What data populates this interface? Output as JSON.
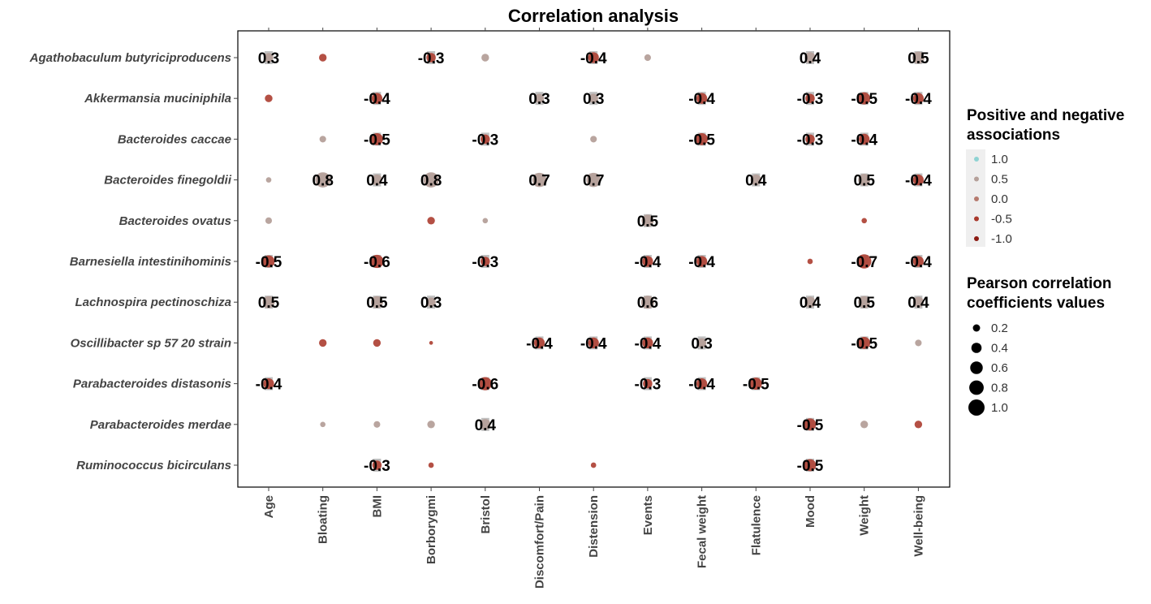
{
  "chart_data": {
    "type": "scatter",
    "title": "Correlation analysis",
    "rows": [
      "Agathobaculum butyriciproducens",
      "Akkermansia muciniphila",
      "Bacteroides caccae",
      "Bacteroides finegoldii",
      "Bacteroides ovatus",
      "Barnesiella intestinihominis",
      "Lachnospira pectinoschiza",
      "Oscillibacter sp 57 20 strain",
      "Parabacteroides distasonis",
      "Parabacteroides merdae",
      "Ruminococcus bicirculans"
    ],
    "columns": [
      "Age",
      "Bloating",
      "BMI",
      "Borborygmi",
      "Bristol",
      "Discomfort/Pain",
      "Distension",
      "Events",
      "Fecal weight",
      "Flatulence",
      "Mood",
      "Weight",
      "Well-being"
    ],
    "cells": [
      {
        "row": 0,
        "col": 0,
        "r": 0.3,
        "label": "0.3"
      },
      {
        "row": 0,
        "col": 1,
        "r": -0.2
      },
      {
        "row": 0,
        "col": 3,
        "r": -0.3,
        "label": "-0.3"
      },
      {
        "row": 0,
        "col": 4,
        "r": 0.2
      },
      {
        "row": 0,
        "col": 6,
        "r": -0.4,
        "label": "-0.4"
      },
      {
        "row": 0,
        "col": 7,
        "r": 0.15
      },
      {
        "row": 0,
        "col": 10,
        "r": 0.4,
        "label": "0.4"
      },
      {
        "row": 0,
        "col": 12,
        "r": 0.5,
        "label": "0.5"
      },
      {
        "row": 1,
        "col": 0,
        "r": -0.2
      },
      {
        "row": 1,
        "col": 2,
        "r": -0.4,
        "label": "-0.4"
      },
      {
        "row": 1,
        "col": 5,
        "r": 0.3,
        "label": "0.3"
      },
      {
        "row": 1,
        "col": 6,
        "r": 0.3,
        "label": "0.3"
      },
      {
        "row": 1,
        "col": 8,
        "r": -0.4,
        "label": "-0.4"
      },
      {
        "row": 1,
        "col": 10,
        "r": -0.3,
        "label": "-0.3"
      },
      {
        "row": 1,
        "col": 11,
        "r": -0.5,
        "label": "-0.5"
      },
      {
        "row": 1,
        "col": 12,
        "r": -0.4,
        "label": "-0.4"
      },
      {
        "row": 2,
        "col": 1,
        "r": 0.15
      },
      {
        "row": 2,
        "col": 2,
        "r": -0.5,
        "label": "-0.5"
      },
      {
        "row": 2,
        "col": 4,
        "r": -0.3,
        "label": "-0.3"
      },
      {
        "row": 2,
        "col": 6,
        "r": 0.15
      },
      {
        "row": 2,
        "col": 8,
        "r": -0.5,
        "label": "-0.5"
      },
      {
        "row": 2,
        "col": 10,
        "r": -0.3,
        "label": "-0.3"
      },
      {
        "row": 2,
        "col": 11,
        "r": -0.4,
        "label": "-0.4"
      },
      {
        "row": 3,
        "col": 0,
        "r": 0.1
      },
      {
        "row": 3,
        "col": 1,
        "r": 0.8,
        "label": "0.8"
      },
      {
        "row": 3,
        "col": 2,
        "r": 0.4,
        "label": "0.4"
      },
      {
        "row": 3,
        "col": 3,
        "r": 0.8,
        "label": "0.8"
      },
      {
        "row": 3,
        "col": 5,
        "r": 0.7,
        "label": "0.7"
      },
      {
        "row": 3,
        "col": 6,
        "r": 0.7,
        "label": "0.7"
      },
      {
        "row": 3,
        "col": 9,
        "r": 0.4,
        "label": "0.4"
      },
      {
        "row": 3,
        "col": 11,
        "r": 0.5,
        "label": "0.5"
      },
      {
        "row": 3,
        "col": 12,
        "r": -0.4,
        "label": "-0.4"
      },
      {
        "row": 4,
        "col": 0,
        "r": 0.15
      },
      {
        "row": 4,
        "col": 3,
        "r": -0.2
      },
      {
        "row": 4,
        "col": 4,
        "r": 0.1
      },
      {
        "row": 4,
        "col": 7,
        "r": 0.5,
        "label": "0.5"
      },
      {
        "row": 4,
        "col": 11,
        "r": -0.1
      },
      {
        "row": 5,
        "col": 0,
        "r": -0.5,
        "label": "-0.5"
      },
      {
        "row": 5,
        "col": 2,
        "r": -0.6,
        "label": "-0.6"
      },
      {
        "row": 5,
        "col": 4,
        "r": -0.3,
        "label": "-0.3"
      },
      {
        "row": 5,
        "col": 7,
        "r": -0.4,
        "label": "-0.4"
      },
      {
        "row": 5,
        "col": 8,
        "r": -0.4,
        "label": "-0.4"
      },
      {
        "row": 5,
        "col": 10,
        "r": -0.1
      },
      {
        "row": 5,
        "col": 11,
        "r": -0.7,
        "label": "-0.7"
      },
      {
        "row": 5,
        "col": 12,
        "r": -0.4,
        "label": "-0.4"
      },
      {
        "row": 6,
        "col": 0,
        "r": 0.5,
        "label": "0.5"
      },
      {
        "row": 6,
        "col": 2,
        "r": 0.5,
        "label": "0.5"
      },
      {
        "row": 6,
        "col": 3,
        "r": 0.3,
        "label": "0.3"
      },
      {
        "row": 6,
        "col": 7,
        "r": 0.6,
        "label": "0.6"
      },
      {
        "row": 6,
        "col": 10,
        "r": 0.4,
        "label": "0.4"
      },
      {
        "row": 6,
        "col": 11,
        "r": 0.5,
        "label": "0.5"
      },
      {
        "row": 6,
        "col": 12,
        "r": 0.4,
        "label": "0.4"
      },
      {
        "row": 7,
        "col": 1,
        "r": -0.2
      },
      {
        "row": 7,
        "col": 2,
        "r": -0.2
      },
      {
        "row": 7,
        "col": 3,
        "r": -0.05
      },
      {
        "row": 7,
        "col": 5,
        "r": -0.4,
        "label": "-0.4"
      },
      {
        "row": 7,
        "col": 6,
        "r": -0.4,
        "label": "-0.4"
      },
      {
        "row": 7,
        "col": 7,
        "r": -0.4,
        "label": "-0.4"
      },
      {
        "row": 7,
        "col": 8,
        "r": 0.3,
        "label": "0.3"
      },
      {
        "row": 7,
        "col": 11,
        "r": -0.5,
        "label": "-0.5"
      },
      {
        "row": 7,
        "col": 12,
        "r": 0.15
      },
      {
        "row": 8,
        "col": 0,
        "r": -0.4,
        "label": "-0.4"
      },
      {
        "row": 8,
        "col": 4,
        "r": -0.6,
        "label": "-0.6"
      },
      {
        "row": 8,
        "col": 7,
        "r": -0.3,
        "label": "-0.3"
      },
      {
        "row": 8,
        "col": 8,
        "r": -0.4,
        "label": "-0.4"
      },
      {
        "row": 8,
        "col": 9,
        "r": -0.5,
        "label": "-0.5"
      },
      {
        "row": 9,
        "col": 1,
        "r": 0.1
      },
      {
        "row": 9,
        "col": 2,
        "r": 0.15
      },
      {
        "row": 9,
        "col": 3,
        "r": 0.2
      },
      {
        "row": 9,
        "col": 4,
        "r": 0.4,
        "label": "0.4"
      },
      {
        "row": 9,
        "col": 10,
        "r": -0.5,
        "label": "-0.5"
      },
      {
        "row": 9,
        "col": 11,
        "r": 0.2
      },
      {
        "row": 9,
        "col": 12,
        "r": -0.2
      },
      {
        "row": 10,
        "col": 2,
        "r": -0.3,
        "label": "-0.3"
      },
      {
        "row": 10,
        "col": 3,
        "r": -0.1
      },
      {
        "row": 10,
        "col": 6,
        "r": -0.1
      },
      {
        "row": 10,
        "col": 10,
        "r": -0.5,
        "label": "-0.5"
      }
    ],
    "legend_color": {
      "title_lines": [
        "Positive and negative",
        "associations"
      ],
      "values": [
        "1.0",
        "0.5",
        "0.0",
        "-0.5",
        "-1.0"
      ],
      "colors": [
        "#8fd3d3",
        "#b5a09a",
        "#b57a6e",
        "#a8392c",
        "#8b1a12"
      ]
    },
    "legend_size": {
      "title_lines": [
        "Pearson correlation",
        "coefficients values"
      ],
      "values": [
        "0.2",
        "0.4",
        "0.6",
        "0.8",
        "1.0"
      ]
    },
    "colors": {
      "positive": "#b5a09a",
      "negative": "#b0473a",
      "label_bg": "#c0c0c0"
    }
  }
}
